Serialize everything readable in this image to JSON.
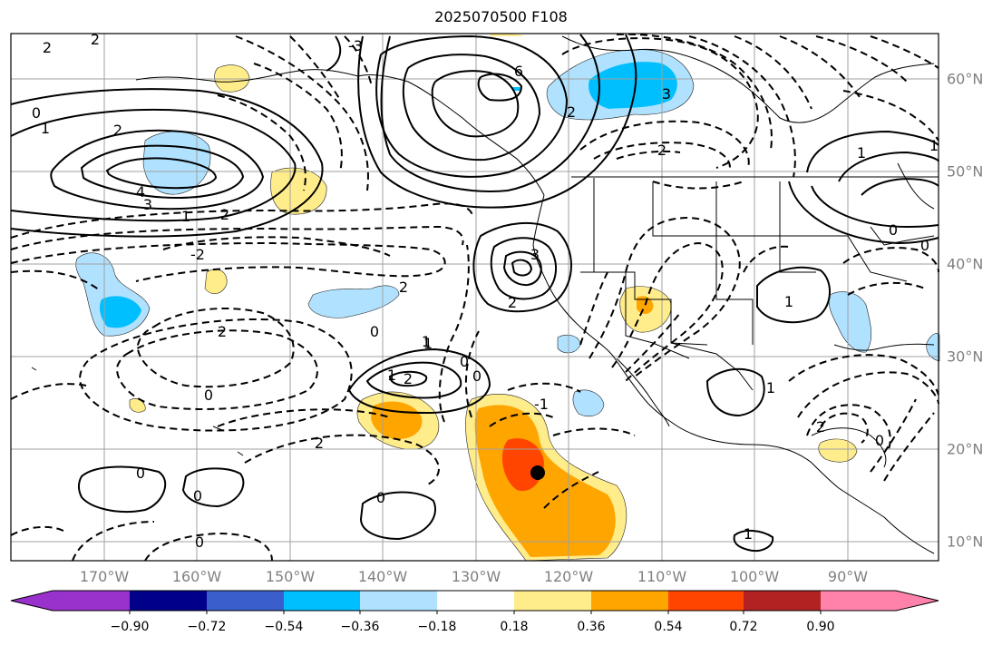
{
  "title": "2025070500 F108",
  "map": {
    "lon_labels": [
      "170°W",
      "160°W",
      "150°W",
      "140°W",
      "130°W",
      "120°W",
      "110°W",
      "100°W",
      "90°W"
    ],
    "lat_labels": [
      "60°N",
      "50°N",
      "40°N",
      "30°N",
      "20°N",
      "10°N"
    ],
    "contour_labels": [
      "2",
      "2",
      "-3",
      "6",
      "2",
      "3",
      "0",
      "1",
      "2",
      "4",
      "3",
      "1",
      "-2",
      "1",
      "0",
      "2",
      "2",
      "2",
      "1",
      "-1",
      "2",
      "3",
      "2",
      "1",
      "0",
      "0",
      "1",
      "2",
      "0",
      "0",
      "0",
      "0",
      "0",
      "1",
      "1",
      "1",
      "0",
      "0",
      "2",
      "1",
      "2",
      "0"
    ]
  },
  "colorbar": {
    "ticks": [
      "−0.90",
      "−0.72",
      "−0.54",
      "−0.36",
      "−0.18",
      "0.18",
      "0.36",
      "0.54",
      "0.72",
      "0.90"
    ],
    "colors": [
      "#9932cc",
      "#00008b",
      "#3a5fcd",
      "#00bfff",
      "#b0e2ff",
      "#ffffff",
      "#ffec8b",
      "#ffa500",
      "#ff4500",
      "#b22222",
      "#ff82ab"
    ]
  },
  "marker": {
    "label": "storm-center"
  }
}
